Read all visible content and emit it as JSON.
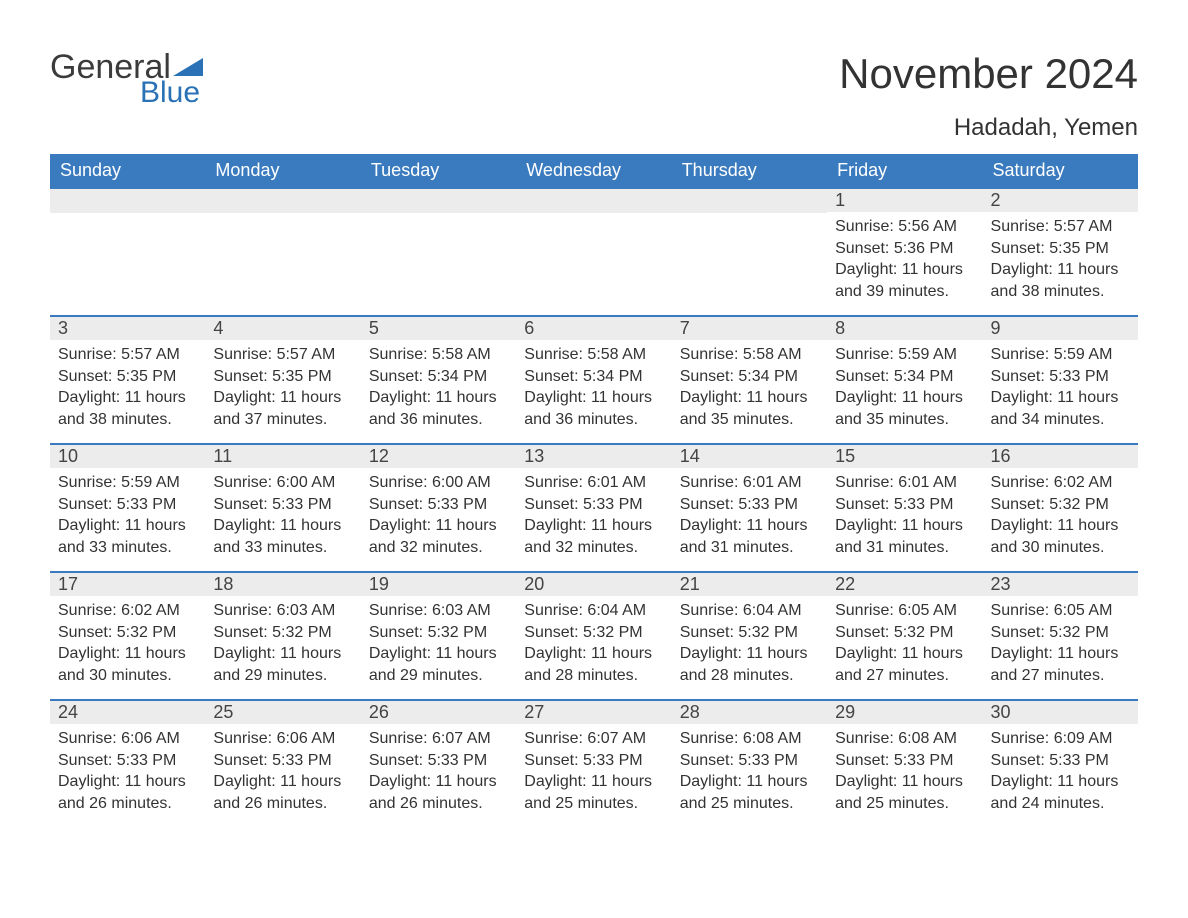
{
  "logo": {
    "text1": "General",
    "text2": "Blue",
    "text_color": "#3b3b3b",
    "blue_color": "#2a72b5",
    "tri_color": "#2a72b5"
  },
  "title": "November 2024",
  "location": "Hadadah, Yemen",
  "colors": {
    "header_bg": "#3a7bbf",
    "header_text": "#ffffff",
    "daynum_bg": "#ececec",
    "daynum_text": "#444444",
    "body_text": "#333333",
    "week_border": "#3a7bbf",
    "page_bg": "#ffffff"
  },
  "fonts": {
    "title_size": 42,
    "location_size": 24,
    "dow_size": 18,
    "daynum_size": 18,
    "body_size": 16
  },
  "days_of_week": [
    "Sunday",
    "Monday",
    "Tuesday",
    "Wednesday",
    "Thursday",
    "Friday",
    "Saturday"
  ],
  "labels": {
    "sunrise": "Sunrise:",
    "sunset": "Sunset:",
    "daylight": "Daylight:"
  },
  "weeks": [
    [
      null,
      null,
      null,
      null,
      null,
      {
        "n": "1",
        "sunrise": "5:56 AM",
        "sunset": "5:36 PM",
        "daylight": "11 hours and 39 minutes."
      },
      {
        "n": "2",
        "sunrise": "5:57 AM",
        "sunset": "5:35 PM",
        "daylight": "11 hours and 38 minutes."
      }
    ],
    [
      {
        "n": "3",
        "sunrise": "5:57 AM",
        "sunset": "5:35 PM",
        "daylight": "11 hours and 38 minutes."
      },
      {
        "n": "4",
        "sunrise": "5:57 AM",
        "sunset": "5:35 PM",
        "daylight": "11 hours and 37 minutes."
      },
      {
        "n": "5",
        "sunrise": "5:58 AM",
        "sunset": "5:34 PM",
        "daylight": "11 hours and 36 minutes."
      },
      {
        "n": "6",
        "sunrise": "5:58 AM",
        "sunset": "5:34 PM",
        "daylight": "11 hours and 36 minutes."
      },
      {
        "n": "7",
        "sunrise": "5:58 AM",
        "sunset": "5:34 PM",
        "daylight": "11 hours and 35 minutes."
      },
      {
        "n": "8",
        "sunrise": "5:59 AM",
        "sunset": "5:34 PM",
        "daylight": "11 hours and 35 minutes."
      },
      {
        "n": "9",
        "sunrise": "5:59 AM",
        "sunset": "5:33 PM",
        "daylight": "11 hours and 34 minutes."
      }
    ],
    [
      {
        "n": "10",
        "sunrise": "5:59 AM",
        "sunset": "5:33 PM",
        "daylight": "11 hours and 33 minutes."
      },
      {
        "n": "11",
        "sunrise": "6:00 AM",
        "sunset": "5:33 PM",
        "daylight": "11 hours and 33 minutes."
      },
      {
        "n": "12",
        "sunrise": "6:00 AM",
        "sunset": "5:33 PM",
        "daylight": "11 hours and 32 minutes."
      },
      {
        "n": "13",
        "sunrise": "6:01 AM",
        "sunset": "5:33 PM",
        "daylight": "11 hours and 32 minutes."
      },
      {
        "n": "14",
        "sunrise": "6:01 AM",
        "sunset": "5:33 PM",
        "daylight": "11 hours and 31 minutes."
      },
      {
        "n": "15",
        "sunrise": "6:01 AM",
        "sunset": "5:33 PM",
        "daylight": "11 hours and 31 minutes."
      },
      {
        "n": "16",
        "sunrise": "6:02 AM",
        "sunset": "5:32 PM",
        "daylight": "11 hours and 30 minutes."
      }
    ],
    [
      {
        "n": "17",
        "sunrise": "6:02 AM",
        "sunset": "5:32 PM",
        "daylight": "11 hours and 30 minutes."
      },
      {
        "n": "18",
        "sunrise": "6:03 AM",
        "sunset": "5:32 PM",
        "daylight": "11 hours and 29 minutes."
      },
      {
        "n": "19",
        "sunrise": "6:03 AM",
        "sunset": "5:32 PM",
        "daylight": "11 hours and 29 minutes."
      },
      {
        "n": "20",
        "sunrise": "6:04 AM",
        "sunset": "5:32 PM",
        "daylight": "11 hours and 28 minutes."
      },
      {
        "n": "21",
        "sunrise": "6:04 AM",
        "sunset": "5:32 PM",
        "daylight": "11 hours and 28 minutes."
      },
      {
        "n": "22",
        "sunrise": "6:05 AM",
        "sunset": "5:32 PM",
        "daylight": "11 hours and 27 minutes."
      },
      {
        "n": "23",
        "sunrise": "6:05 AM",
        "sunset": "5:32 PM",
        "daylight": "11 hours and 27 minutes."
      }
    ],
    [
      {
        "n": "24",
        "sunrise": "6:06 AM",
        "sunset": "5:33 PM",
        "daylight": "11 hours and 26 minutes."
      },
      {
        "n": "25",
        "sunrise": "6:06 AM",
        "sunset": "5:33 PM",
        "daylight": "11 hours and 26 minutes."
      },
      {
        "n": "26",
        "sunrise": "6:07 AM",
        "sunset": "5:33 PM",
        "daylight": "11 hours and 26 minutes."
      },
      {
        "n": "27",
        "sunrise": "6:07 AM",
        "sunset": "5:33 PM",
        "daylight": "11 hours and 25 minutes."
      },
      {
        "n": "28",
        "sunrise": "6:08 AM",
        "sunset": "5:33 PM",
        "daylight": "11 hours and 25 minutes."
      },
      {
        "n": "29",
        "sunrise": "6:08 AM",
        "sunset": "5:33 PM",
        "daylight": "11 hours and 25 minutes."
      },
      {
        "n": "30",
        "sunrise": "6:09 AM",
        "sunset": "5:33 PM",
        "daylight": "11 hours and 24 minutes."
      }
    ]
  ]
}
